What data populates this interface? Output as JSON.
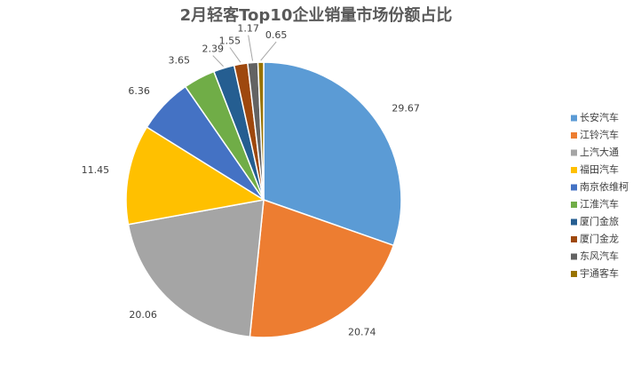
{
  "chart_data": {
    "type": "pie",
    "title": "2月轻客Top10企业销量市场份额占比",
    "categories": [
      "长安汽车",
      "江铃汽车",
      "上汽大通",
      "福田汽车",
      "南京依维柯",
      "江淮汽车",
      "厦门金旅",
      "厦门金龙",
      "东风汽车",
      "宇通客车"
    ],
    "values": [
      29.67,
      20.74,
      20.06,
      11.45,
      6.36,
      3.65,
      2.39,
      1.55,
      1.17,
      0.65
    ],
    "colors": [
      "#5b9bd5",
      "#ed7d31",
      "#a5a5a5",
      "#ffc000",
      "#4472c4",
      "#70ad47",
      "#255e91",
      "#9e480e",
      "#636363",
      "#997300"
    ],
    "legend": "right"
  }
}
